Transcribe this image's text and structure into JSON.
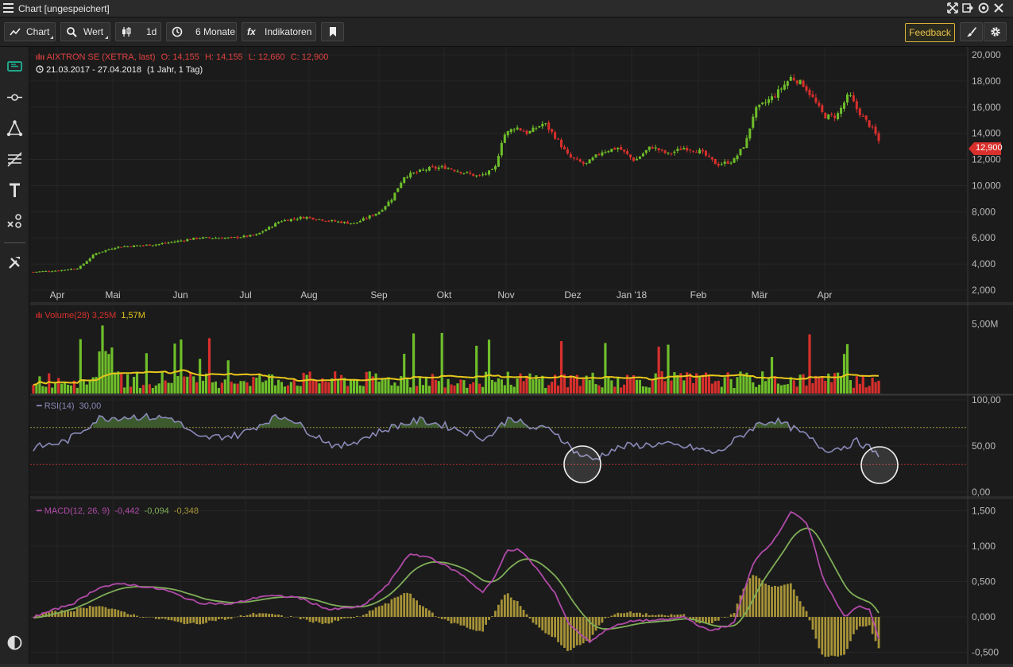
{
  "window": {
    "title": "Chart [ungespeichert]"
  },
  "toolbar": {
    "chart_label": "Chart",
    "wert_label": "Wert",
    "interval_label": "1d",
    "range_label": "6 Monate",
    "indicators_label": "Indikatoren",
    "feedback_label": "Feedback"
  },
  "colors": {
    "up": "#6fbf2a",
    "down": "#d8302c",
    "ma": "#e8c81c",
    "rsi": "#8a89b8",
    "macd": "#b04aa8",
    "signal": "#7fae58",
    "histogram": "#a89438",
    "accent": "#1fa58a",
    "feedback": "#d6b23a"
  },
  "price_panel": {
    "instrument": "AIXTRON SE (XETRA, last)",
    "ohlc": {
      "o_label": "O:",
      "o": "14,155",
      "h_label": "H:",
      "h": "14,155",
      "l_label": "L:",
      "l": "12,660",
      "c_label": "C:",
      "c": "12,900"
    },
    "date_range": "21.03.2017 - 27.04.2018",
    "period": "(1 Jahr, 1 Tag)",
    "last_price_badge": "12,900",
    "y_ticks": [
      "20,000",
      "18,000",
      "16,000",
      "14,000",
      "12,000",
      "10,000",
      "8,000",
      "6,000",
      "4,000",
      "2,000"
    ],
    "months": [
      "Apr",
      "Mai",
      "Jun",
      "Jul",
      "Aug",
      "Sep",
      "Okt",
      "Nov",
      "Dez",
      "Jan '18",
      "Feb",
      "Mär",
      "Apr"
    ]
  },
  "volume_panel": {
    "name": "Volume(28)",
    "value1": "3,25M",
    "value2": "1,57M",
    "y_ticks": [
      "5,00M"
    ]
  },
  "rsi_panel": {
    "name": "RSI(14)",
    "value": "30,00",
    "y_ticks": [
      "100,00",
      "50,00",
      "0,00"
    ]
  },
  "macd_panel": {
    "name": "MACD(12, 26, 9)",
    "v1": "-0,442",
    "v2": "-0,094",
    "v3": "-0,348",
    "y_ticks": [
      "1,500",
      "1,000",
      "0,500",
      "0,000",
      "-0,500"
    ]
  },
  "chart_data": {
    "type": "candlestick",
    "x_range": [
      "21.03.2017",
      "27.04.2018"
    ],
    "price_ylim": [
      2,
      20.5
    ],
    "price_anchors": [
      [
        0,
        3.4
      ],
      [
        0.03,
        3.5
      ],
      [
        0.055,
        3.7
      ],
      [
        0.075,
        4.8
      ],
      [
        0.1,
        5.3
      ],
      [
        0.15,
        5.5
      ],
      [
        0.2,
        6.0
      ],
      [
        0.24,
        6.0
      ],
      [
        0.27,
        6.2
      ],
      [
        0.3,
        7.3
      ],
      [
        0.33,
        7.6
      ],
      [
        0.36,
        7.3
      ],
      [
        0.39,
        7.1
      ],
      [
        0.42,
        8.0
      ],
      [
        0.435,
        9.0
      ],
      [
        0.45,
        10.7
      ],
      [
        0.48,
        11.3
      ],
      [
        0.5,
        11.4
      ],
      [
        0.54,
        10.7
      ],
      [
        0.56,
        11.2
      ],
      [
        0.57,
        13.8
      ],
      [
        0.585,
        14.5
      ],
      [
        0.6,
        14.0
      ],
      [
        0.62,
        14.8
      ],
      [
        0.635,
        13.6
      ],
      [
        0.65,
        12.2
      ],
      [
        0.67,
        11.6
      ],
      [
        0.69,
        12.6
      ],
      [
        0.71,
        12.9
      ],
      [
        0.73,
        11.9
      ],
      [
        0.75,
        13.0
      ],
      [
        0.77,
        12.4
      ],
      [
        0.79,
        12.9
      ],
      [
        0.81,
        12.6
      ],
      [
        0.83,
        11.6
      ],
      [
        0.85,
        11.9
      ],
      [
        0.865,
        13.3
      ],
      [
        0.875,
        15.7
      ],
      [
        0.9,
        16.9
      ],
      [
        0.92,
        18.3
      ],
      [
        0.935,
        17.7
      ],
      [
        0.945,
        16.8
      ],
      [
        0.96,
        15.3
      ],
      [
        0.975,
        15.3
      ],
      [
        0.99,
        17.0
      ],
      [
        1.0,
        15.8
      ],
      [
        1.02,
        14.2
      ],
      [
        1.03,
        12.9
      ]
    ],
    "rsi_ylim": [
      0,
      100
    ],
    "rsi_levels": [
      70,
      30
    ],
    "rsi_anchors": [
      [
        0,
        48
      ],
      [
        0.04,
        55
      ],
      [
        0.08,
        80
      ],
      [
        0.12,
        82
      ],
      [
        0.17,
        80
      ],
      [
        0.2,
        58
      ],
      [
        0.25,
        62
      ],
      [
        0.29,
        80
      ],
      [
        0.31,
        82
      ],
      [
        0.33,
        68
      ],
      [
        0.37,
        48
      ],
      [
        0.41,
        62
      ],
      [
        0.44,
        72
      ],
      [
        0.47,
        78
      ],
      [
        0.5,
        72
      ],
      [
        0.53,
        64
      ],
      [
        0.55,
        58
      ],
      [
        0.58,
        82
      ],
      [
        0.6,
        70
      ],
      [
        0.63,
        68
      ],
      [
        0.66,
        42
      ],
      [
        0.68,
        35
      ],
      [
        0.7,
        45
      ],
      [
        0.72,
        50
      ],
      [
        0.76,
        52
      ],
      [
        0.8,
        48
      ],
      [
        0.83,
        42
      ],
      [
        0.85,
        55
      ],
      [
        0.88,
        74
      ],
      [
        0.9,
        78
      ],
      [
        0.92,
        70
      ],
      [
        0.94,
        60
      ],
      [
        0.96,
        46
      ],
      [
        0.98,
        48
      ],
      [
        1.0,
        55
      ],
      [
        1.02,
        45
      ],
      [
        1.03,
        30
      ]
    ],
    "macd_ylim": [
      -0.6,
      1.55
    ],
    "macd_anchors": [
      [
        0,
        0.0
      ],
      [
        0.05,
        0.2
      ],
      [
        0.08,
        0.42
      ],
      [
        0.11,
        0.47
      ],
      [
        0.16,
        0.38
      ],
      [
        0.2,
        0.2
      ],
      [
        0.24,
        0.18
      ],
      [
        0.28,
        0.3
      ],
      [
        0.32,
        0.28
      ],
      [
        0.36,
        0.1
      ],
      [
        0.4,
        0.15
      ],
      [
        0.43,
        0.45
      ],
      [
        0.455,
        0.88
      ],
      [
        0.48,
        0.85
      ],
      [
        0.52,
        0.6
      ],
      [
        0.545,
        0.35
      ],
      [
        0.56,
        0.55
      ],
      [
        0.575,
        0.95
      ],
      [
        0.59,
        0.95
      ],
      [
        0.61,
        0.7
      ],
      [
        0.635,
        0.3
      ],
      [
        0.65,
        -0.1
      ],
      [
        0.675,
        -0.35
      ],
      [
        0.7,
        -0.15
      ],
      [
        0.73,
        -0.05
      ],
      [
        0.76,
        -0.05
      ],
      [
        0.79,
        0.0
      ],
      [
        0.82,
        -0.2
      ],
      [
        0.85,
        -0.1
      ],
      [
        0.875,
        0.8
      ],
      [
        0.9,
        1.1
      ],
      [
        0.92,
        1.5
      ],
      [
        0.94,
        1.3
      ],
      [
        0.96,
        0.5
      ],
      [
        0.985,
        0.0
      ],
      [
        1.0,
        0.15
      ],
      [
        1.015,
        0.1
      ],
      [
        1.03,
        -0.44
      ]
    ],
    "volume_max_millions": 6
  }
}
